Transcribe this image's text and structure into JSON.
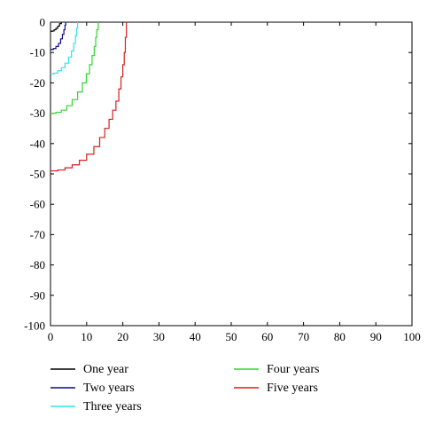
{
  "chart_data": {
    "type": "line",
    "title": "",
    "xlabel": "",
    "ylabel": "",
    "xlim": [
      0,
      100
    ],
    "ylim": [
      -100,
      0
    ],
    "xticks": [
      "0",
      "10",
      "20",
      "30",
      "40",
      "50",
      "60",
      "70",
      "80",
      "90",
      "100"
    ],
    "yticks": [
      "0",
      "-10",
      "-20",
      "-30",
      "-40",
      "-50",
      "-60",
      "-70",
      "-80",
      "-90",
      "-100"
    ],
    "grid": false,
    "legend_position": "bottom",
    "series": [
      {
        "name": "One year",
        "color": "#000000",
        "x": [
          0,
          0.5,
          1.0,
          1.5,
          2.0,
          2.5,
          3.0
        ],
        "y": [
          -3.0,
          -2.9,
          -2.5,
          -2.0,
          -1.3,
          -0.5,
          0
        ]
      },
      {
        "name": "Two years",
        "color": "#0a0a8c",
        "x": [
          0,
          0.8,
          1.5,
          2.2,
          2.8,
          3.3,
          3.7,
          4.0,
          4.2
        ],
        "y": [
          -9.0,
          -8.7,
          -8.0,
          -7.0,
          -5.5,
          -4.0,
          -2.5,
          -1.0,
          0
        ]
      },
      {
        "name": "Three years",
        "color": "#33e3e3",
        "x": [
          0,
          1.0,
          2.0,
          3.0,
          4.0,
          5.0,
          5.8,
          6.4,
          6.9,
          7.2,
          7.5
        ],
        "y": [
          -17.0,
          -16.8,
          -16.0,
          -15.0,
          -13.5,
          -11.5,
          -9.5,
          -7.0,
          -4.5,
          -2.0,
          0
        ]
      },
      {
        "name": "Four years",
        "color": "#33d633",
        "x": [
          0,
          1.5,
          3.0,
          4.5,
          6.0,
          7.5,
          8.8,
          9.9,
          10.8,
          11.5,
          12.1,
          12.5,
          12.8,
          13.2
        ],
        "y": [
          -30.0,
          -29.7,
          -29.0,
          -27.5,
          -25.5,
          -23.0,
          -20.0,
          -17.0,
          -14.0,
          -11.0,
          -8.0,
          -5.0,
          -2.5,
          0
        ]
      },
      {
        "name": "Five years",
        "color": "#d61f1f",
        "x": [
          0,
          2.0,
          4.0,
          6.0,
          8.0,
          10.0,
          12.0,
          13.6,
          15.0,
          16.2,
          17.2,
          18.1,
          18.9,
          19.5,
          20.0,
          20.4,
          20.7,
          21.0
        ],
        "y": [
          -49.0,
          -48.7,
          -48.0,
          -47.0,
          -45.5,
          -43.5,
          -41.0,
          -38.0,
          -35.0,
          -32.0,
          -29.0,
          -26.0,
          -22.0,
          -18.0,
          -14.0,
          -10.0,
          -5.0,
          0
        ]
      }
    ]
  }
}
